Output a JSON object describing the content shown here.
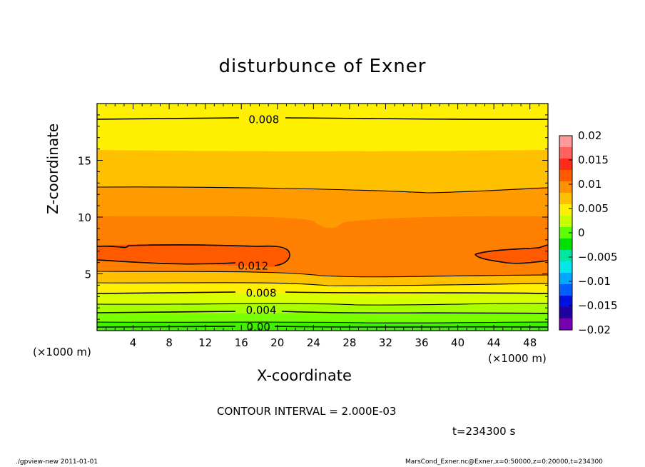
{
  "chart_data": {
    "type": "contour",
    "title": "disturbunce of Exner",
    "xlabel": "X-coordinate",
    "ylabel": "Z-coordinate",
    "x_unit_note": "(×1000 m)",
    "y_unit_note": "(×1000 m)",
    "xlim": [
      0,
      50
    ],
    "ylim": [
      0,
      20
    ],
    "x_ticks": [
      4,
      8,
      12,
      16,
      20,
      24,
      28,
      32,
      36,
      40,
      44,
      48
    ],
    "y_ticks": [
      5,
      10,
      15
    ],
    "contour_interval_text": "CONTOUR INTERVAL = 2.000E-03",
    "contour_labels": [
      {
        "text": "0.008",
        "x": 18.5,
        "z": 18.6
      },
      {
        "text": "0.012",
        "x": 17.3,
        "z": 5.7
      },
      {
        "text": "0.008",
        "x": 18.2,
        "z": 3.3
      },
      {
        "text": "0.004",
        "x": 18.2,
        "z": 1.8
      },
      {
        "text": "0.00",
        "x": 17.9,
        "z": 0.3
      }
    ],
    "colorbar": {
      "tick_labels": [
        "0.02",
        "0.015",
        "0.01",
        "0.005",
        "0",
        "−0.005",
        "−0.01",
        "−0.015",
        "−0.02"
      ],
      "values": [
        0.02,
        0.015,
        0.01,
        0.005,
        0,
        -0.005,
        -0.01,
        -0.015,
        -0.02
      ],
      "colors_top_to_bottom": [
        "#ff9a9a",
        "#ff6060",
        "#ff2a1a",
        "#ff5a00",
        "#ff9000",
        "#ffc000",
        "#ffef00",
        "#c8ff00",
        "#5cff00",
        "#00e000",
        "#00e6a0",
        "#00e8e8",
        "#00a8ff",
        "#0060ff",
        "#0010e0",
        "#2000a0",
        "#7800b0"
      ]
    },
    "field_colors": {
      "band_top": "#ffef00",
      "band_upper": "#ffc000",
      "band_mid": "#ff9000",
      "band_core": "#ff5a00",
      "band_low1": "#ffef00",
      "band_low2": "#c8ff00",
      "band_low3": "#5cff00"
    }
  },
  "texts": {
    "time": "t=234300 s",
    "footer_left": "./gpview-new   2011-01-01",
    "footer_right": "MarsCond_Exner.nc@Exner,x=0:50000,z=0:20000,t=234300"
  }
}
